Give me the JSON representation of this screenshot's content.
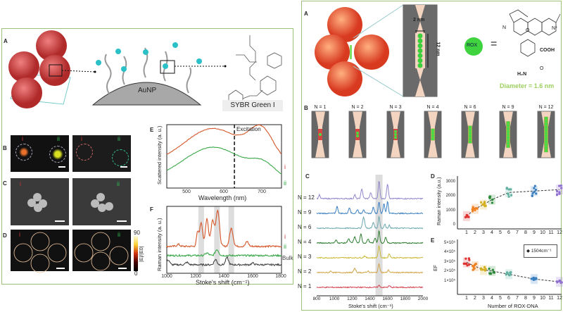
{
  "left_figure": {
    "panel_labels": [
      "A",
      "B",
      "C",
      "D",
      "E",
      "F"
    ],
    "dome_label": "AuNP",
    "dye_label": "SYBR Green I",
    "subpanel_marks": {
      "i": "i",
      "ii": "ii"
    },
    "colorbar": {
      "max": "90",
      "min": "0",
      "label": "|E|/|E0|"
    },
    "colors": {
      "i": "#d4562a",
      "ii": "#3aa84a",
      "bulk": "#444444"
    }
  },
  "right_figure": {
    "panel_labels": [
      "A",
      "B",
      "C",
      "D",
      "E"
    ],
    "gap_width": "2 nm",
    "gap_length": "12 nm",
    "rox_label": "ROX",
    "equals": "=",
    "diameter_label": "Diameter = 1.6 nm",
    "chem_labels": [
      "N",
      "O",
      "N⁺",
      "COOH",
      "O",
      "H₂N"
    ],
    "tiles": [
      "N = 1",
      "N = 2",
      "N = 3",
      "N = 4",
      "N = 6",
      "N = 9",
      "N = 12"
    ]
  },
  "chart_data": [
    {
      "id": "E_left",
      "type": "line",
      "xlabel": "Wavelength (nm)",
      "ylabel": "Scattered intensity (a. u.)",
      "xlim": [
        460,
        745
      ],
      "xticks": [
        "500",
        "600",
        "700"
      ],
      "annotation": "Excitation",
      "excitation_nm": 628,
      "series": [
        {
          "name": "i",
          "peaks": [
            [
              575,
              1.0,
              70
            ],
            [
              695,
              0.85,
              30
            ]
          ],
          "offset": 0.45
        },
        {
          "name": "ii",
          "peaks": [
            [
              575,
              0.95,
              75
            ],
            [
              700,
              0.35,
              30
            ]
          ],
          "offset": 0
        }
      ]
    },
    {
      "id": "F_left",
      "type": "line",
      "xlabel": "Stoke's shift (cm⁻¹)",
      "ylabel": "Raman intensity (a. u.)",
      "xlim": [
        1000,
        1800
      ],
      "xticks": [
        "1000",
        "1200",
        "1400",
        "1600",
        "1800"
      ],
      "highlight_bands": [
        1240,
        1350,
        1450
      ],
      "series": [
        {
          "name": "i",
          "offset": 0.55,
          "peaks": [
            [
              1215,
              0.35,
              8
            ],
            [
              1240,
              0.6,
              10
            ],
            [
              1280,
              0.7,
              10
            ],
            [
              1320,
              0.65,
              12
            ],
            [
              1355,
              0.9,
              12
            ],
            [
              1450,
              0.45,
              12
            ],
            [
              1560,
              0.12,
              10
            ],
            [
              1080,
              0.05,
              10
            ]
          ]
        },
        {
          "name": "ii",
          "offset": 0.3,
          "peaks": [
            [
              1350,
              0.15,
              12
            ],
            [
              1280,
              0.06,
              12
            ]
          ]
        },
        {
          "name": "Bulk",
          "offset": 0.05,
          "peaks": [
            [
              1010,
              0.12,
              10
            ],
            [
              1140,
              0.06,
              10
            ],
            [
              1340,
              0.13,
              10
            ],
            [
              1420,
              0.18,
              10
            ],
            [
              1600,
              0.04,
              10
            ]
          ]
        }
      ]
    },
    {
      "id": "C_right",
      "type": "line",
      "xlabel": "Stoke's shift (cm⁻¹)",
      "xlim": [
        800,
        2000
      ],
      "xticks": [
        "800",
        "1000",
        "1200",
        "1400",
        "1600",
        "1800",
        "2000"
      ],
      "highlight_band": 1504,
      "series": [
        {
          "name": "N = 12",
          "color": "#8f86cc",
          "peaks": [
            [
              830,
              0.2,
              8
            ],
            [
              1230,
              0.2,
              8
            ],
            [
              1310,
              0.5,
              10
            ],
            [
              1410,
              0.3,
              10
            ],
            [
              1504,
              0.9,
              9
            ],
            [
              1600,
              0.75,
              10
            ]
          ]
        },
        {
          "name": "N = 9",
          "color": "#3a7fc0",
          "peaks": [
            [
              1030,
              0.35,
              10
            ],
            [
              1170,
              0.3,
              10
            ],
            [
              1260,
              0.2,
              10
            ],
            [
              1330,
              0.2,
              10
            ],
            [
              1440,
              0.3,
              10
            ],
            [
              1504,
              0.6,
              9
            ],
            [
              1560,
              0.5,
              9
            ],
            [
              1600,
              0.6,
              9
            ]
          ]
        },
        {
          "name": "N = 6",
          "color": "#6aa8b0",
          "peaks": [
            [
              1330,
              0.55,
              12
            ],
            [
              1440,
              0.3,
              10
            ],
            [
              1504,
              0.6,
              9
            ],
            [
              1570,
              0.2,
              9
            ],
            [
              1620,
              0.15,
              9
            ]
          ]
        },
        {
          "name": "N = 4",
          "color": "#2e7d32",
          "peaks": [
            [
              1020,
              0.15,
              10
            ],
            [
              1160,
              0.2,
              12
            ],
            [
              1230,
              0.3,
              12
            ],
            [
              1300,
              0.45,
              10
            ],
            [
              1380,
              0.2,
              10
            ],
            [
              1460,
              0.25,
              10
            ],
            [
              1504,
              0.6,
              9
            ],
            [
              1580,
              0.3,
              10
            ]
          ]
        },
        {
          "name": "N = 3",
          "color": "#c9b833",
          "peaks": [
            [
              1340,
              0.1,
              10
            ],
            [
              1504,
              0.6,
              10
            ],
            [
              1620,
              0.2,
              10
            ]
          ]
        },
        {
          "name": "N = 2",
          "color": "#d2a244",
          "peaks": [
            [
              960,
              0.08,
              10
            ],
            [
              1230,
              0.2,
              12
            ],
            [
              1380,
              0.08,
              10
            ],
            [
              1504,
              0.45,
              10
            ],
            [
              1610,
              0.12,
              10
            ]
          ]
        },
        {
          "name": "N = 1",
          "color": "#d2404e",
          "peaks": [
            [
              1504,
              0.1,
              10
            ],
            [
              1620,
              0.08,
              10
            ]
          ]
        }
      ]
    },
    {
      "id": "D_right",
      "type": "scatter",
      "ylabel": "Raman intensity (a.u.)",
      "ylim": [
        0,
        3300
      ],
      "yticks": [
        "0",
        "1000",
        "2000",
        "3000"
      ],
      "xticks": [
        "1",
        "2",
        "3",
        "4",
        "5",
        "6",
        "7",
        "8",
        "9",
        "10",
        "11",
        "12"
      ],
      "x": [
        1,
        2,
        3,
        4,
        6,
        9,
        12
      ],
      "values": [
        650,
        1150,
        1450,
        1800,
        2300,
        2400,
        2500
      ],
      "colors": [
        "#e03030",
        "#f08020",
        "#d4b020",
        "#2e8b3a",
        "#5fb0a0",
        "#3a7fc0",
        "#9070d0"
      ]
    },
    {
      "id": "E_right",
      "type": "scatter",
      "ylabel": "EF",
      "xlabel": "Number of ROX-DNA",
      "yticks": [
        "1×10⁵",
        "2×10⁵",
        "3×10⁵",
        "4×10⁵",
        "5×10⁵"
      ],
      "ylim": [
        0,
        5
      ],
      "xticks": [
        "1",
        "2",
        "3",
        "4",
        "5",
        "6",
        "7",
        "8",
        "9",
        "10",
        "11",
        "12"
      ],
      "legend": "1504cm⁻¹",
      "x": [
        1,
        2,
        3,
        4,
        6,
        9,
        12
      ],
      "values": [
        3.0,
        2.6,
        2.2,
        2.1,
        1.75,
        1.25,
        0.95
      ],
      "value_unit": "×10⁵"
    }
  ]
}
